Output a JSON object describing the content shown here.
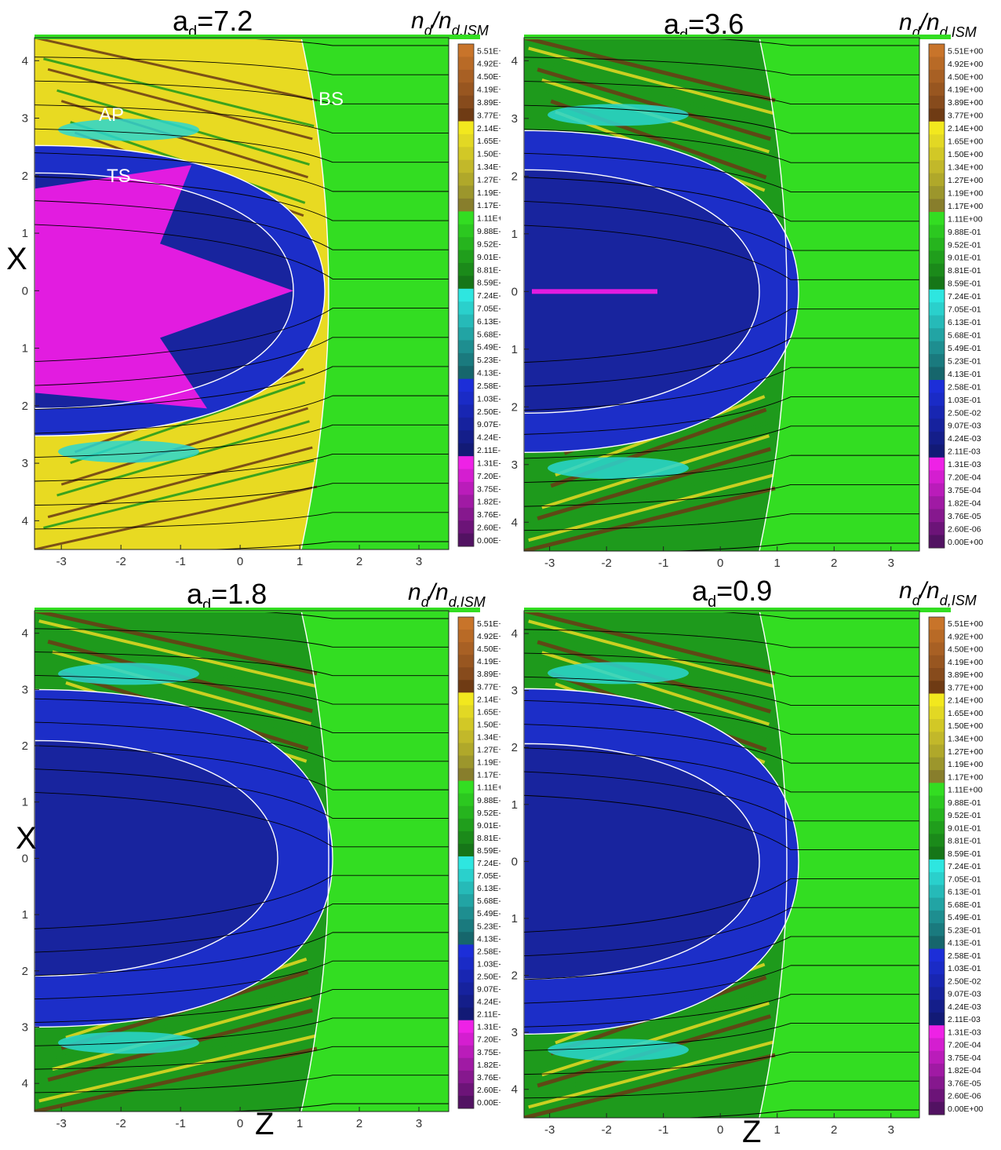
{
  "colorbar": {
    "title_base": "n",
    "title_sub1": "d",
    "title_mid": "/n",
    "title_sub2": "d,ISM",
    "levels": [
      {
        "label": "5.51E+00",
        "color": "#c8742a"
      },
      {
        "label": "4.92E+00",
        "color": "#b86a26"
      },
      {
        "label": "4.50E+00",
        "color": "#a86024"
      },
      {
        "label": "4.19E+00",
        "color": "#985620"
      },
      {
        "label": "3.89E+00",
        "color": "#874b1c"
      },
      {
        "label": "3.77E+00",
        "color": "#6f3b14"
      },
      {
        "label": "2.14E+00",
        "color": "#f2e81e"
      },
      {
        "label": "1.65E+00",
        "color": "#e2d824"
      },
      {
        "label": "1.50E+00",
        "color": "#d2c826"
      },
      {
        "label": "1.34E+00",
        "color": "#c2b82a"
      },
      {
        "label": "1.27E+00",
        "color": "#b0a82a"
      },
      {
        "label": "1.19E+00",
        "color": "#9c962c"
      },
      {
        "label": "1.17E+00",
        "color": "#887e2c"
      },
      {
        "label": "1.11E+00",
        "color": "#33dd22"
      },
      {
        "label": "9.88E-01",
        "color": "#2cc820"
      },
      {
        "label": "9.52E-01",
        "color": "#26b41e"
      },
      {
        "label": "9.01E-01",
        "color": "#209e1c"
      },
      {
        "label": "8.81E-01",
        "color": "#1b8a1a"
      },
      {
        "label": "8.59E-01",
        "color": "#167618"
      },
      {
        "label": "7.24E-01",
        "color": "#2ee6e0"
      },
      {
        "label": "7.05E-01",
        "color": "#2ad0cc"
      },
      {
        "label": "6.13E-01",
        "color": "#26bab8"
      },
      {
        "label": "5.68E-01",
        "color": "#22a4a4"
      },
      {
        "label": "5.49E-01",
        "color": "#1e8e90"
      },
      {
        "label": "5.23E-01",
        "color": "#1a7a7e"
      },
      {
        "label": "4.13E-01",
        "color": "#16666c"
      },
      {
        "label": "2.58E-01",
        "color": "#1c2ed8"
      },
      {
        "label": "1.03E-01",
        "color": "#1a2bc6"
      },
      {
        "label": "2.50E-02",
        "color": "#1826b2"
      },
      {
        "label": "9.07E-03",
        "color": "#16229e"
      },
      {
        "label": "4.24E-03",
        "color": "#141e8a"
      },
      {
        "label": "2.11E-03",
        "color": "#121a76"
      },
      {
        "label": "1.31E-03",
        "color": "#ee22e6"
      },
      {
        "label": "7.20E-04",
        "color": "#d41ed0"
      },
      {
        "label": "3.75E-04",
        "color": "#ba1cba"
      },
      {
        "label": "1.82E-04",
        "color": "#a01aa4"
      },
      {
        "label": "3.76E-05",
        "color": "#86188e"
      },
      {
        "label": "2.60E-06",
        "color": "#6c1478"
      },
      {
        "label": "0.00E+00",
        "color": "#521262"
      }
    ]
  },
  "axes": {
    "xlabel": "Z",
    "ylabel": "X",
    "xticks": [
      "-3",
      "-2",
      "-1",
      "0",
      "1",
      "2",
      "3"
    ],
    "yticks": [
      "4",
      "3",
      "2",
      "1",
      "0",
      "1",
      "2",
      "3",
      "4"
    ]
  },
  "panels": [
    {
      "title_base": "a",
      "title_sub": "d",
      "title_val": "=7.2",
      "annotations": [
        {
          "text": "AP"
        },
        {
          "text": "TS"
        },
        {
          "text": "BS"
        }
      ]
    },
    {
      "title_base": "a",
      "title_sub": "d",
      "title_val": "=3.6",
      "annotations": []
    },
    {
      "title_base": "a",
      "title_sub": "d",
      "title_val": "=1.8",
      "annotations": []
    },
    {
      "title_base": "a",
      "title_sub": "d",
      "title_val": "=0.9",
      "annotations": []
    }
  ],
  "colors": {
    "background_green": "#33dd22",
    "dark_green": "#1e9a1c",
    "yellow": "#e8da22",
    "blue": "#1c2ec8",
    "dark_blue": "#18249e",
    "magenta": "#e21ce0",
    "cyan": "#2ad6d0",
    "brown": "#6a3a14"
  }
}
